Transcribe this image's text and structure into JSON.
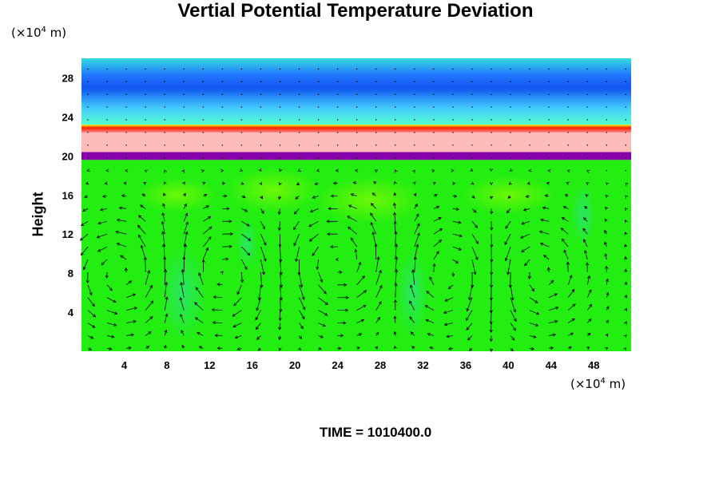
{
  "title": "Vertial Potential Temperature Deviation",
  "y_unit": {
    "prefix": "(×10",
    "exp": "4",
    "suffix": " m)"
  },
  "x_unit": {
    "prefix": "(×10",
    "exp": "4",
    "suffix": " m)"
  },
  "time_label": "TIME = 1010400.0",
  "chart_data": {
    "type": "heatmap",
    "title": "Vertial Potential Temperature Deviation",
    "ylabel": "Height",
    "xlabel": "",
    "x_unit": "×10^4 m",
    "y_unit": "×10^4 m",
    "xlim": [
      0,
      51.5
    ],
    "ylim": [
      0,
      30
    ],
    "x_ticks": [
      4,
      8,
      12,
      16,
      20,
      24,
      28,
      32,
      36,
      40,
      44,
      48
    ],
    "y_ticks": [
      4,
      8,
      12,
      16,
      20,
      24,
      28
    ],
    "grid": false,
    "layers": [
      {
        "y_from": 0,
        "y_to": 19.6,
        "color": "#22ee11"
      },
      {
        "y_from": 19.6,
        "y_to": 20.4,
        "color": "#8800aa"
      },
      {
        "y_from": 20.4,
        "y_to": 22.4,
        "color": "#ffbbbb"
      },
      {
        "y_from": 22.4,
        "y_to": 23.2,
        "color": "#ff2200"
      },
      {
        "y_from": 23.2,
        "y_to": 30,
        "color": "#33ccff"
      }
    ],
    "vortex_centers": [
      {
        "x": 4,
        "y": 8,
        "rotation": "counterclockwise"
      },
      {
        "x": 13,
        "y": 8,
        "rotation": "clockwise"
      },
      {
        "x": 24,
        "y": 9,
        "rotation": "counterclockwise"
      },
      {
        "x": 35,
        "y": 8,
        "rotation": "clockwise"
      },
      {
        "x": 42,
        "y": 8,
        "rotation": "counterclockwise"
      }
    ]
  }
}
